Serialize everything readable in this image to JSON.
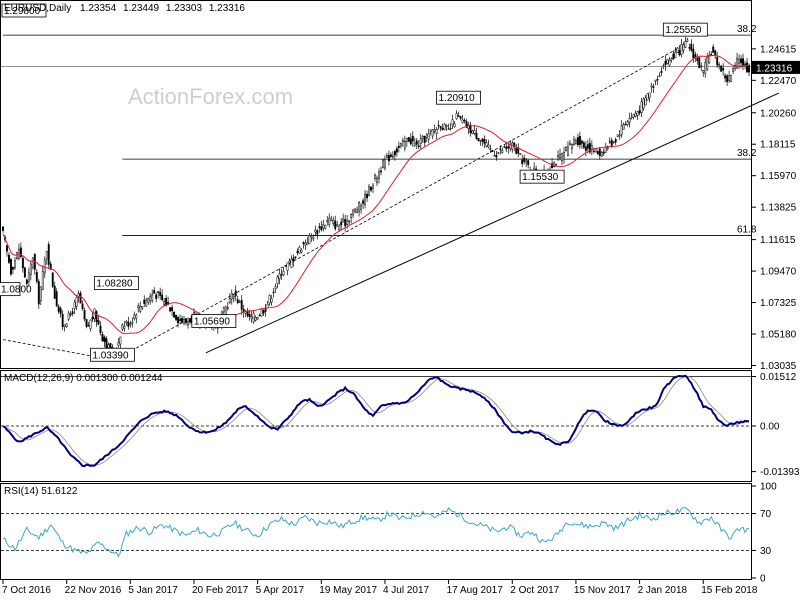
{
  "chart_data": [
    {
      "type": "candlestick",
      "symbol": "EURUSD",
      "timeframe": "Daily",
      "ohlc": [
        "1.23354",
        "1.23449",
        "1.23303",
        "1.23316"
      ],
      "last_price": "1.23316",
      "watermark": "ActionForex.com",
      "ylim": [
        1.03,
        1.274
      ],
      "y_ticks": [
        {
          "value": 1.24615,
          "label": "1.24615"
        },
        {
          "value": 1.2247,
          "label": "1.22470"
        },
        {
          "value": 1.2026,
          "label": "1.20260"
        },
        {
          "value": 1.18115,
          "label": "1.18115"
        },
        {
          "value": 1.1597,
          "label": "1.15970"
        },
        {
          "value": 1.13825,
          "label": "1.13825"
        },
        {
          "value": 1.11615,
          "label": "1.11615"
        },
        {
          "value": 1.0947,
          "label": "1.09470"
        },
        {
          "value": 1.07325,
          "label": "1.07325"
        },
        {
          "value": 1.0518,
          "label": "1.05180"
        },
        {
          "value": 1.03035,
          "label": "1.03035"
        }
      ],
      "x_tick_labels": [
        "7 Oct 2016",
        "22 Nov 2016",
        "5 Jan 2017",
        "20 Feb 2017",
        "5 Apr 2017",
        "19 May 2017",
        "4 Jul 2017",
        "17 Aug 2017",
        "2 Oct 2017",
        "15 Nov 2017",
        "2 Jan 2018",
        "15 Feb 2018"
      ],
      "x_tick_index": [
        0,
        32,
        64,
        96,
        128,
        160,
        192,
        224,
        256,
        288,
        320,
        352
      ],
      "swing_labels": [
        {
          "label": "1.29800",
          "index": 1,
          "value": 1.298
        },
        {
          "label": "1.08280",
          "index": 58,
          "value": 1.0828
        },
        {
          "label": "1.03390",
          "index": 56,
          "value": 1.0339
        },
        {
          "label": "1.05690",
          "index": 107,
          "value": 1.0569
        },
        {
          "label": "1.20910",
          "index": 230,
          "value": 1.2091
        },
        {
          "label": "1.15530",
          "index": 272,
          "value": 1.1553
        },
        {
          "label": "1.25550",
          "index": 344,
          "value": 1.2555
        }
      ],
      "clipped_left_label": "1.0800",
      "fib_levels": [
        {
          "label": "38.2",
          "value": 1.2555,
          "from_index": 0
        },
        {
          "label": "38.2",
          "value": 1.171,
          "from_index": 60
        },
        {
          "label": "61.8",
          "value": 1.119,
          "from_index": 60
        }
      ],
      "reference_line": {
        "value": 1.234
      },
      "channel": {
        "lower": {
          "from": {
            "index": 102,
            "value": 1.039
          },
          "to": {
            "index": 390,
            "value": 1.216
          }
        },
        "upper_dashed": {
          "from": {
            "index": 56,
            "value": 1.0339
          },
          "to": {
            "index": 340,
            "value": 1.247
          }
        },
        "left_dashed": {
          "from": {
            "index": 0,
            "value": 1.048
          },
          "to": {
            "index": 56,
            "value": 1.0339
          }
        }
      },
      "ma_color": "#e0202a",
      "candle_up_color": "#ffffff",
      "candle_down_color": "#000000",
      "anchors": [
        [
          0,
          1.12
        ],
        [
          4,
          1.095
        ],
        [
          8,
          1.11
        ],
        [
          12,
          1.085
        ],
        [
          15,
          1.105
        ],
        [
          18,
          1.075
        ],
        [
          22,
          1.11
        ],
        [
          26,
          1.078
        ],
        [
          30,
          1.058
        ],
        [
          34,
          1.065
        ],
        [
          38,
          1.078
        ],
        [
          42,
          1.055
        ],
        [
          46,
          1.066
        ],
        [
          50,
          1.05
        ],
        [
          54,
          1.04
        ],
        [
          56,
          1.036
        ],
        [
          60,
          1.058
        ],
        [
          64,
          1.06
        ],
        [
          68,
          1.07
        ],
        [
          72,
          1.075
        ],
        [
          76,
          1.08
        ],
        [
          80,
          1.075
        ],
        [
          84,
          1.07
        ],
        [
          88,
          1.062
        ],
        [
          92,
          1.06
        ],
        [
          96,
          1.064
        ],
        [
          100,
          1.058
        ],
        [
          104,
          1.06
        ],
        [
          108,
          1.058
        ],
        [
          112,
          1.07
        ],
        [
          116,
          1.08
        ],
        [
          120,
          1.07
        ],
        [
          124,
          1.062
        ],
        [
          128,
          1.065
        ],
        [
          132,
          1.07
        ],
        [
          136,
          1.082
        ],
        [
          140,
          1.095
        ],
        [
          144,
          1.1
        ],
        [
          148,
          1.108
        ],
        [
          152,
          1.115
        ],
        [
          156,
          1.12
        ],
        [
          160,
          1.125
        ],
        [
          164,
          1.13
        ],
        [
          168,
          1.125
        ],
        [
          172,
          1.128
        ],
        [
          176,
          1.135
        ],
        [
          180,
          1.14
        ],
        [
          184,
          1.15
        ],
        [
          188,
          1.16
        ],
        [
          192,
          1.17
        ],
        [
          196,
          1.175
        ],
        [
          200,
          1.18
        ],
        [
          204,
          1.185
        ],
        [
          208,
          1.18
        ],
        [
          212,
          1.185
        ],
        [
          216,
          1.19
        ],
        [
          220,
          1.195
        ],
        [
          224,
          1.19
        ],
        [
          228,
          1.2
        ],
        [
          232,
          1.195
        ],
        [
          236,
          1.19
        ],
        [
          240,
          1.185
        ],
        [
          244,
          1.178
        ],
        [
          248,
          1.175
        ],
        [
          252,
          1.178
        ],
        [
          256,
          1.18
        ],
        [
          260,
          1.172
        ],
        [
          264,
          1.166
        ],
        [
          268,
          1.162
        ],
        [
          272,
          1.16
        ],
        [
          276,
          1.168
        ],
        [
          280,
          1.172
        ],
        [
          284,
          1.178
        ],
        [
          288,
          1.185
        ],
        [
          292,
          1.18
        ],
        [
          296,
          1.178
        ],
        [
          300,
          1.175
        ],
        [
          304,
          1.18
        ],
        [
          308,
          1.185
        ],
        [
          312,
          1.195
        ],
        [
          316,
          1.2
        ],
        [
          320,
          1.205
        ],
        [
          324,
          1.215
        ],
        [
          328,
          1.225
        ],
        [
          332,
          1.235
        ],
        [
          336,
          1.24
        ],
        [
          340,
          1.245
        ],
        [
          344,
          1.25
        ],
        [
          348,
          1.24
        ],
        [
          352,
          1.23
        ],
        [
          356,
          1.245
        ],
        [
          360,
          1.235
        ],
        [
          364,
          1.225
        ],
        [
          366,
          1.228
        ],
        [
          370,
          1.24
        ],
        [
          374,
          1.233
        ]
      ]
    },
    {
      "type": "line",
      "title": "MACD(12,26,9) 0.001300 0.001244",
      "ylim": [
        -0.0165,
        0.0165
      ],
      "y_ticks": [
        {
          "value": 0.01512,
          "label": "0.01512"
        },
        {
          "value": 0.0,
          "label": "0.00"
        },
        {
          "value": -0.01393,
          "label": "-0.01393"
        }
      ],
      "top_line": 0.01512,
      "zero_line": 0.0,
      "series": [
        {
          "name": "MACD",
          "color": "#000080"
        },
        {
          "name": "Signal",
          "color": "#888888"
        }
      ],
      "anchors": [
        [
          0,
          0.0
        ],
        [
          8,
          -0.005
        ],
        [
          14,
          -0.003
        ],
        [
          22,
          -0.0005
        ],
        [
          28,
          -0.004
        ],
        [
          34,
          -0.009
        ],
        [
          40,
          -0.012
        ],
        [
          46,
          -0.012
        ],
        [
          52,
          -0.009
        ],
        [
          58,
          -0.006
        ],
        [
          64,
          -0.002
        ],
        [
          70,
          0.002
        ],
        [
          76,
          0.004
        ],
        [
          82,
          0.0045
        ],
        [
          88,
          0.003
        ],
        [
          94,
          -0.0005
        ],
        [
          100,
          -0.002
        ],
        [
          106,
          -0.0015
        ],
        [
          112,
          0.001
        ],
        [
          118,
          0.005
        ],
        [
          122,
          0.006
        ],
        [
          128,
          0.003
        ],
        [
          134,
          -0.0005
        ],
        [
          138,
          -0.001
        ],
        [
          144,
          0.003
        ],
        [
          150,
          0.0075
        ],
        [
          154,
          0.008
        ],
        [
          158,
          0.006
        ],
        [
          162,
          0.007
        ],
        [
          168,
          0.01
        ],
        [
          172,
          0.0115
        ],
        [
          176,
          0.01
        ],
        [
          182,
          0.005
        ],
        [
          186,
          0.003
        ],
        [
          190,
          0.006
        ],
        [
          196,
          0.007
        ],
        [
          202,
          0.007
        ],
        [
          208,
          0.01
        ],
        [
          214,
          0.014
        ],
        [
          218,
          0.015
        ],
        [
          222,
          0.013
        ],
        [
          228,
          0.0115
        ],
        [
          234,
          0.011
        ],
        [
          240,
          0.0095
        ],
        [
          246,
          0.006
        ],
        [
          252,
          0.001
        ],
        [
          256,
          -0.002
        ],
        [
          262,
          -0.002
        ],
        [
          266,
          -0.0015
        ],
        [
          270,
          -0.0025
        ],
        [
          276,
          -0.005
        ],
        [
          280,
          -0.0055
        ],
        [
          284,
          -0.005
        ],
        [
          290,
          0.0015
        ],
        [
          294,
          0.005
        ],
        [
          298,
          0.0045
        ],
        [
          302,
          0.002
        ],
        [
          306,
          0.0005
        ],
        [
          310,
          0.0
        ],
        [
          314,
          0.001
        ],
        [
          318,
          0.004
        ],
        [
          322,
          0.005
        ],
        [
          328,
          0.006
        ],
        [
          332,
          0.011
        ],
        [
          336,
          0.014
        ],
        [
          340,
          0.0155
        ],
        [
          344,
          0.015
        ],
        [
          348,
          0.011
        ],
        [
          352,
          0.006
        ],
        [
          356,
          0.005
        ],
        [
          360,
          0.0015
        ],
        [
          364,
          0.0
        ],
        [
          368,
          0.001
        ],
        [
          372,
          0.0013
        ],
        [
          374,
          0.0013
        ]
      ]
    },
    {
      "type": "line",
      "title": "RSI(14) 51.6122",
      "ylim": [
        0,
        100
      ],
      "y_ticks": [
        {
          "value": 100,
          "label": "100"
        },
        {
          "value": 70,
          "label": "70"
        },
        {
          "value": 30,
          "label": "30"
        },
        {
          "value": 0,
          "label": "0"
        }
      ],
      "levels": [
        70,
        30
      ],
      "series": [
        {
          "name": "RSI",
          "color": "#39a9ce"
        }
      ],
      "anchors": [
        [
          0,
          42
        ],
        [
          6,
          32
        ],
        [
          12,
          52
        ],
        [
          18,
          44
        ],
        [
          24,
          58
        ],
        [
          30,
          38
        ],
        [
          36,
          30
        ],
        [
          42,
          26
        ],
        [
          48,
          38
        ],
        [
          54,
          30
        ],
        [
          58,
          24
        ],
        [
          62,
          48
        ],
        [
          68,
          55
        ],
        [
          74,
          50
        ],
        [
          80,
          58
        ],
        [
          86,
          52
        ],
        [
          92,
          46
        ],
        [
          98,
          52
        ],
        [
          104,
          46
        ],
        [
          110,
          50
        ],
        [
          116,
          60
        ],
        [
          122,
          52
        ],
        [
          128,
          46
        ],
        [
          134,
          58
        ],
        [
          140,
          64
        ],
        [
          146,
          58
        ],
        [
          152,
          66
        ],
        [
          158,
          60
        ],
        [
          164,
          62
        ],
        [
          170,
          56
        ],
        [
          176,
          62
        ],
        [
          182,
          66
        ],
        [
          188,
          62
        ],
        [
          194,
          70
        ],
        [
          200,
          64
        ],
        [
          206,
          68
        ],
        [
          212,
          72
        ],
        [
          218,
          66
        ],
        [
          224,
          74
        ],
        [
          230,
          68
        ],
        [
          236,
          60
        ],
        [
          242,
          56
        ],
        [
          248,
          50
        ],
        [
          254,
          56
        ],
        [
          260,
          46
        ],
        [
          266,
          50
        ],
        [
          272,
          38
        ],
        [
          278,
          46
        ],
        [
          284,
          62
        ],
        [
          290,
          58
        ],
        [
          296,
          56
        ],
        [
          302,
          60
        ],
        [
          308,
          54
        ],
        [
          314,
          62
        ],
        [
          320,
          68
        ],
        [
          326,
          64
        ],
        [
          332,
          70
        ],
        [
          338,
          72
        ],
        [
          344,
          74
        ],
        [
          350,
          60
        ],
        [
          356,
          66
        ],
        [
          362,
          50
        ],
        [
          366,
          44
        ],
        [
          370,
          54
        ],
        [
          374,
          52
        ]
      ]
    }
  ]
}
